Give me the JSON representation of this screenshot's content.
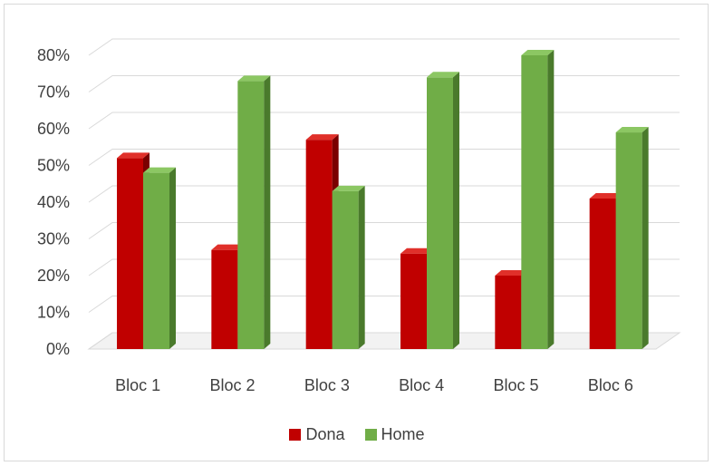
{
  "chart_data": {
    "type": "bar",
    "style": "3d-clustered-column",
    "categories": [
      "Bloc 1",
      "Bloc 2",
      "Bloc 3",
      "Bloc 4",
      "Bloc 5",
      "Bloc 6"
    ],
    "series": [
      {
        "name": "Dona",
        "values": [
          52,
          27,
          57,
          26,
          20,
          41
        ],
        "color": "#c00000",
        "dark": "#7a0000",
        "light": "#e0302a"
      },
      {
        "name": "Home",
        "values": [
          48,
          73,
          43,
          74,
          80,
          59
        ],
        "color": "#70ad47",
        "dark": "#4a7a2c",
        "light": "#8cc763"
      }
    ],
    "y_ticks": [
      "0%",
      "10%",
      "20%",
      "30%",
      "40%",
      "50%",
      "60%",
      "70%",
      "80%"
    ],
    "ylim": [
      0,
      80
    ],
    "unit": "%",
    "grid": true,
    "legend_position": "bottom",
    "title": "",
    "xlabel": "",
    "ylabel": ""
  }
}
